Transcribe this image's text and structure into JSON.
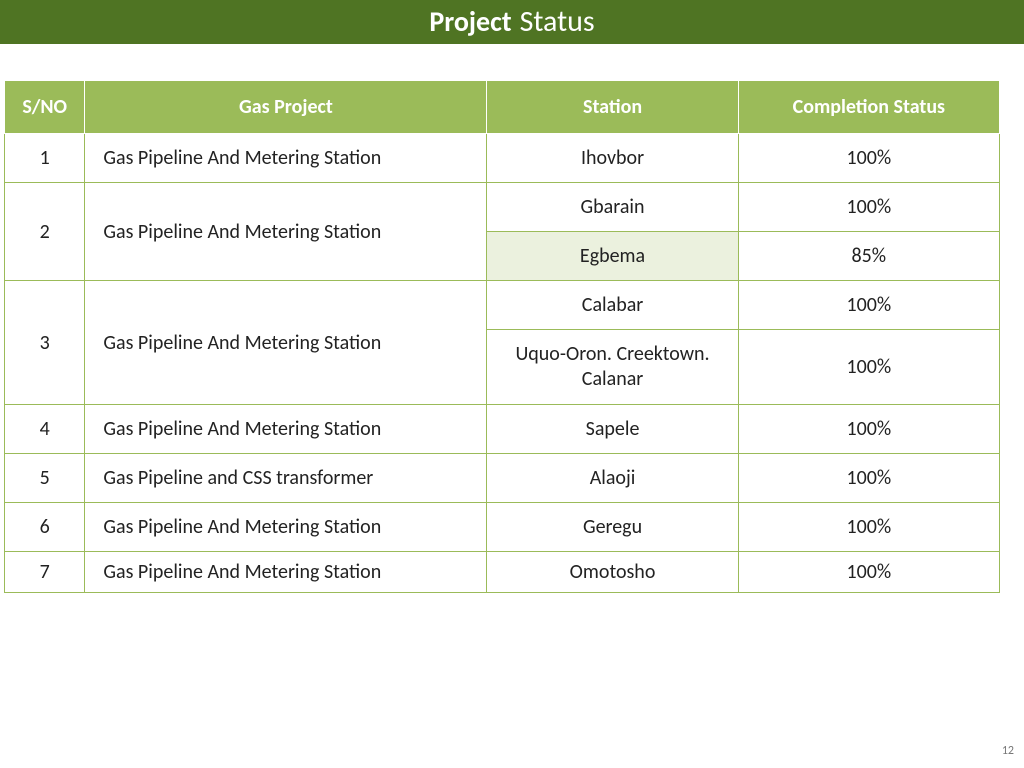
{
  "title": {
    "word1": "Project",
    "word2": "Status"
  },
  "title_style": {
    "bar_bg": "#4f7423",
    "text_color": "#ffffff",
    "word1_weight": 700,
    "word1_size": 28,
    "word2_weight": 400,
    "word2_size": 30,
    "word2_family": "Calibri Light, Calibri, Arial, sans-serif"
  },
  "headers": {
    "sno": "S/NO",
    "project": "Gas Project",
    "station": "Station",
    "status": "Completion Status"
  },
  "header_style": {
    "bg": "#9bbb59",
    "text_color": "#ffffff",
    "font_size": 20
  },
  "cell_style": {
    "border_color": "#9bbb59",
    "font_size": 20,
    "shade_bg": "#ebf1de",
    "text_color": "#222222"
  },
  "rows": [
    {
      "sno": "1",
      "project": "Gas Pipeline And Metering Station",
      "station": "Ihovbor",
      "status": "100%"
    },
    {
      "sno": "2",
      "project": "Gas Pipeline And Metering Station",
      "span": 2,
      "sub": [
        {
          "station": "Gbarain",
          "status": "100%"
        },
        {
          "station": "Egbema",
          "status": "85%",
          "shade": true
        }
      ]
    },
    {
      "sno": "3",
      "project": "Gas Pipeline And Metering Station",
      "span": 2,
      "sub": [
        {
          "station": "Calabar",
          "status": "100%"
        },
        {
          "station": "Uquo-Oron. Creektown. Calanar",
          "status": "100%",
          "multiline": true
        }
      ]
    },
    {
      "sno": "4",
      "project": "Gas Pipeline And Metering Station",
      "station": "Sapele",
      "status": "100%"
    },
    {
      "sno": "5",
      "project": "Gas Pipeline and CSS transformer",
      "station": "Alaoji",
      "status": "100%"
    },
    {
      "sno": "6",
      "project": "Gas Pipeline And Metering Station",
      "station": "Geregu",
      "status": "100%"
    },
    {
      "sno": "7",
      "project": "Gas Pipeline And Metering Station",
      "station": "Omotosho",
      "status": "100%",
      "thin": true
    }
  ],
  "page_number": "12"
}
